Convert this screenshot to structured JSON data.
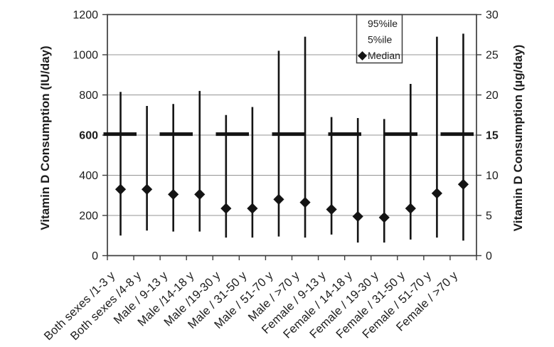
{
  "chart_data": {
    "type": "scatter",
    "subtype": "percentile-range-plot",
    "title": "",
    "ylabel_left": "Vitamin D Consumption (IU/day)",
    "ylabel_right": "Vitamin D Consumption (µg/day)",
    "ylim_left": [
      0,
      1200
    ],
    "yticks_left": [
      0,
      200,
      400,
      600,
      800,
      1000,
      1200
    ],
    "bold_ytick_left": 600,
    "ylim_right": [
      0,
      30
    ],
    "yticks_right": [
      0,
      5,
      10,
      15,
      20,
      25,
      30
    ],
    "bold_ytick_right": 15,
    "grid": "horizontal",
    "legend_position": "top-inside",
    "legend": [
      {
        "label": "95%ile",
        "marker": "none"
      },
      {
        "label": "5%ile",
        "marker": "none"
      },
      {
        "label": "Median",
        "marker": "diamond"
      }
    ],
    "categories": [
      "Both sexes /1-3 y",
      "Both sexes /4-8 y",
      "Male / 9-13 y",
      "Male /14-18 y",
      "Male /19-30 y",
      "Male / 31-50 y",
      "Male / 51-70 y",
      "Male / >70 y",
      "Female / 9-13 y",
      "Female / 14-18 y",
      "Female / 19-30 y",
      "Female / 31-50 y",
      "Female / 51-70 y",
      "Female / >70 y"
    ],
    "series": [
      {
        "name": "95%ile",
        "unit": "IU/day",
        "values": [
          815,
          745,
          755,
          820,
          700,
          740,
          1020,
          1090,
          690,
          685,
          680,
          855,
          1090,
          1105
        ]
      },
      {
        "name": "Median",
        "unit": "IU/day",
        "values": [
          330,
          330,
          305,
          305,
          235,
          235,
          280,
          265,
          230,
          195,
          190,
          235,
          310,
          355
        ]
      },
      {
        "name": "5%ile",
        "unit": "IU/day",
        "values": [
          100,
          125,
          120,
          120,
          90,
          90,
          95,
          90,
          105,
          65,
          65,
          80,
          90,
          75
        ]
      }
    ],
    "reference_line": {
      "value_iu": 605,
      "value_ug": 15,
      "style": "thick-dashed",
      "color": "#141414"
    },
    "colors": {
      "ink": "#141414",
      "text": "#1c1c1c",
      "axis": "#3d3d3d",
      "gridline": "#949494",
      "background": "#ffffff"
    }
  }
}
